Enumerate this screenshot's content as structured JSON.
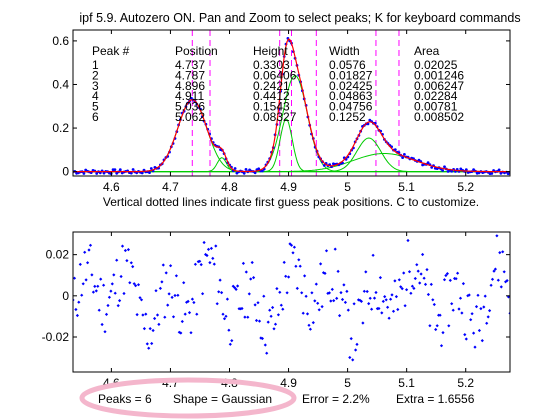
{
  "chart_data": [
    {
      "type": "line",
      "title": "ipf 5.9. Autozero ON. Pan and Zoom to select peaks; K for keyboard commands",
      "xlabel": "Vertical dotted lines indicate first guess peak positions. C to customize.",
      "xlim": [
        4.535,
        5.275
      ],
      "ylim": [
        -0.02,
        0.65
      ],
      "xticks": [
        4.6,
        4.7,
        4.8,
        4.9,
        5.0,
        5.1,
        5.2
      ],
      "xtick_labels": [
        "4.6",
        "4.7",
        "4.8",
        "4.9",
        "5",
        "5.1",
        "5.2"
      ],
      "yticks": [
        0,
        0.2,
        0.4,
        0.6
      ],
      "ytick_labels": [
        "0",
        "0.2",
        "0.4",
        "0.6"
      ],
      "grid": false,
      "guess_lines_x": [
        4.737,
        4.767,
        4.885,
        4.905,
        4.947,
        5.048,
        5.087
      ],
      "peak_table": {
        "headers": [
          "Peak #",
          "Position",
          "Height",
          "Width",
          "Area"
        ],
        "rows": [
          [
            "1",
            "4.737",
            "0.3303",
            "0.0576",
            "0.02025"
          ],
          [
            "2",
            "4.787",
            "0.06406",
            "0.01827",
            "0.001246"
          ],
          [
            "3",
            "4.896",
            "0.2421",
            "0.02425",
            "0.006247"
          ],
          [
            "4",
            "4.911",
            "0.4412",
            "0.04863",
            "0.02284"
          ],
          [
            "5",
            "5.036",
            "0.1543",
            "0.04756",
            "0.00781"
          ],
          [
            "6",
            "5.062",
            "0.08327",
            "0.1252",
            "0.008502"
          ]
        ]
      },
      "series": [
        {
          "role": "data",
          "color": "#0000ff"
        },
        {
          "role": "fit-total",
          "color": "#ff0000"
        },
        {
          "role": "components",
          "color": "#00cc00"
        },
        {
          "role": "guess-lines",
          "color": "#ff00ff"
        }
      ]
    },
    {
      "type": "scatter",
      "xlim": [
        4.535,
        5.275
      ],
      "ylim": [
        -0.037,
        0.031
      ],
      "xticks": [
        4.6,
        4.7,
        4.8,
        4.9,
        5.0,
        5.1,
        5.2
      ],
      "xtick_labels": [
        "4.6",
        "4.7",
        "4.8",
        "4.9",
        "5",
        "5.1",
        "5.2"
      ],
      "yticks": [
        -0.02,
        0,
        0.02
      ],
      "ytick_labels": [
        "-0.02",
        "0",
        "0.02"
      ],
      "point_color": "#0000ff"
    }
  ],
  "status": {
    "peaks": "Peaks = 6",
    "shape": "Shape = Gaussian",
    "error": "Error = 2.2%",
    "extra": "Extra = 1.6556"
  },
  "highlight_color": "#f4b6cc"
}
